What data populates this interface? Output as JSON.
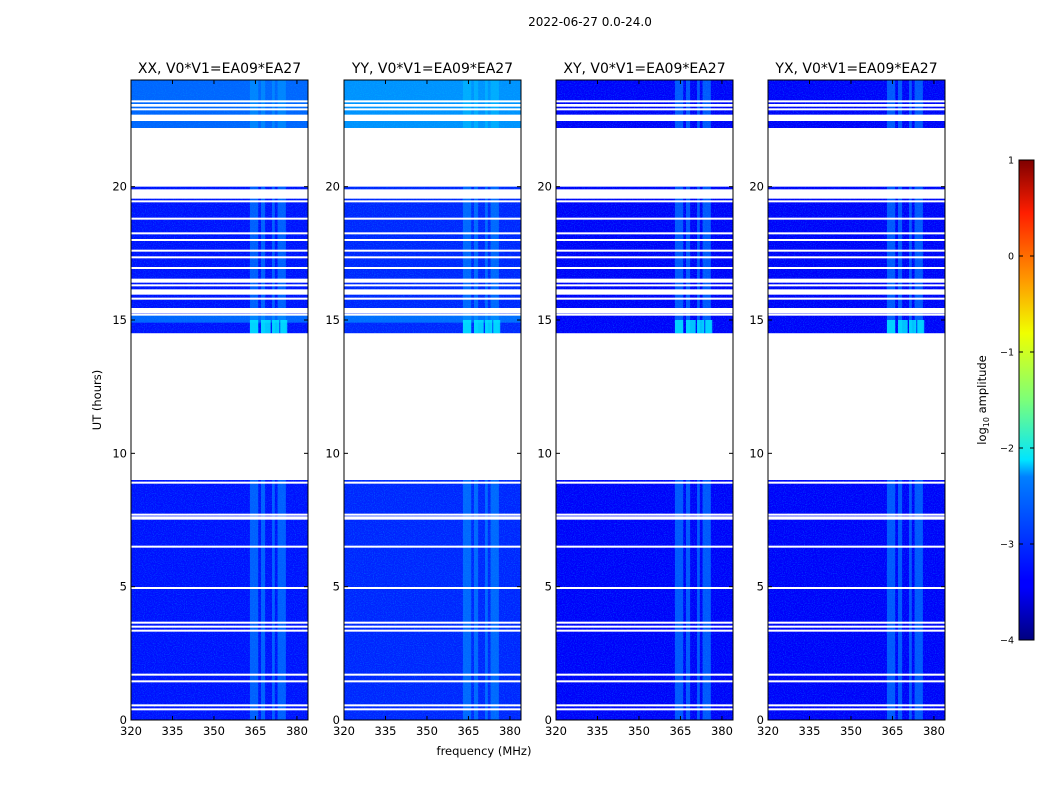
{
  "chart_data": {
    "type": "heatmap",
    "suptitle": "2022-06-27 0.0-24.0",
    "xlabel": "frequency (MHz)",
    "ylabel": "UT (hours)",
    "xlim": [
      320,
      384
    ],
    "ylim": [
      0,
      24
    ],
    "xticks": [
      320,
      335,
      350,
      365,
      380
    ],
    "yticks": [
      0,
      5,
      10,
      15,
      20
    ],
    "colormap": "jet",
    "colorbar": {
      "label_prefix": "log",
      "label_sub": "10",
      "label_suffix": " amplitude",
      "range": [
        -4,
        1
      ],
      "ticks": [
        "1",
        "0",
        "−1",
        "−2",
        "−3",
        "−4"
      ],
      "tick_values": [
        1,
        0,
        -1,
        -2,
        -3,
        -4
      ]
    },
    "background_level": -3.3,
    "data_bands_hours": [
      [
        0,
        9
      ],
      [
        14.5,
        20
      ],
      [
        22.2,
        24
      ]
    ],
    "gap_rows_hours": [
      0.4,
      0.55,
      1.45,
      1.7,
      3.35,
      3.5,
      3.65,
      4.95,
      6.5,
      7.55,
      7.6,
      7.7,
      8.9,
      15.2,
      15.8,
      16.05,
      16.3,
      16.95,
      17.35,
      17.6,
      18.0,
      18.25,
      18.8,
      19.45,
      22.5,
      22.9,
      23.2
    ],
    "flag_gaps_hours": [
      [
        9.0,
        14.5
      ],
      [
        15.25,
        15.45
      ],
      [
        15.95,
        16.15
      ],
      [
        16.4,
        16.55
      ],
      [
        19.55,
        19.9
      ],
      [
        20.05,
        22.15
      ],
      [
        22.5,
        22.7
      ],
      [
        23.0,
        23.1
      ]
    ],
    "rfi_channels_mhz": [
      [
        363,
        366
      ],
      [
        367,
        368.5
      ],
      [
        371,
        372
      ],
      [
        373,
        376
      ]
    ],
    "panels": [
      {
        "title": "XX, V0*V1=EA09*EA27",
        "polarization": "XX",
        "mean_level": -3.3
      },
      {
        "title": "YY, V0*V1=EA09*EA27",
        "polarization": "YY",
        "mean_level": -3.2
      },
      {
        "title": "XY, V0*V1=EA09*EA27",
        "polarization": "XY",
        "mean_level": -3.4
      },
      {
        "title": "YX, V0*V1=EA09*EA27",
        "polarization": "YX",
        "mean_level": -3.4
      }
    ]
  }
}
